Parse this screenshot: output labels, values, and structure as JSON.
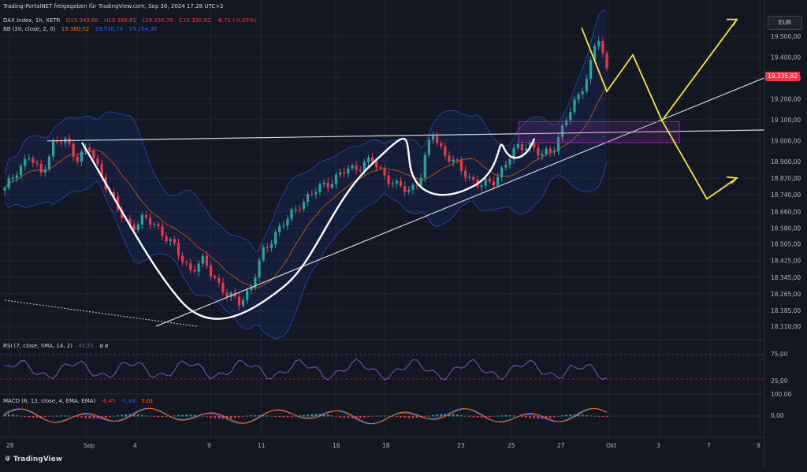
{
  "header": {
    "published": "Trading-PortalNET freigegeben für TradingView.com, Sep 30, 2024 17:28 UTC+2",
    "symbol": "DAX Index, 1h, XETR",
    "open": "O19.343,66",
    "high": "H19.366,61",
    "low": "L19.335,76",
    "close": "C19.335,82",
    "change": "-8,71 (-0,05%)",
    "bb_label": "BB (20, close, 2, 0)",
    "bb_basis": "19.360,52",
    "bb_upper": "19.516,74",
    "bb_lower": "19.204,30"
  },
  "currency": "EUR",
  "last_price": "19.335,82",
  "rsi_label": "RSI (7, close, SMA, 14, 2)",
  "rsi_value": "45,51",
  "rsi_extra": "ø ø",
  "macd_label": "MACD (6, 13, close, 4, EMA, EMA)",
  "macd_hist": "-6,45",
  "macd_line": "-1,43",
  "macd_signal": "5,01",
  "brand": "TradingView",
  "colors": {
    "up": "#26a69a",
    "down": "#f23645",
    "bb": "#2962ff",
    "basis": "#ff6d00",
    "white": "#ffffff",
    "yellow": "#f7e731",
    "rsi": "#7e57c2",
    "zone": "#9c27b0"
  },
  "chart_data": {
    "type": "candlestick",
    "title": "DAX Index, 1h, XETR",
    "ylim": [
      18050,
      19620
    ],
    "y_ticks": [
      "19.500,00",
      "19.400,00",
      "19.300,00",
      "19.200,00",
      "19.100,00",
      "19.000,00",
      "18.900,00",
      "18.820,00",
      "18.740,00",
      "18.660,00",
      "18.580,00",
      "18.505,00",
      "18.425,00",
      "18.345,00",
      "18.265,00",
      "18.185,00",
      "18.110,00"
    ],
    "x_ticks": [
      "28",
      "Sep",
      "4",
      "9",
      "11",
      "16",
      "18",
      "23",
      "25",
      "27",
      "Okt",
      "3",
      "7",
      "9"
    ],
    "rsi_ticks": [
      "75,00",
      "25,00"
    ],
    "macd_ticks": [
      "100,00",
      "0,00"
    ],
    "price_path": [
      [
        0,
        18760
      ],
      [
        0.02,
        18860
      ],
      [
        0.04,
        18920
      ],
      [
        0.06,
        18840
      ],
      [
        0.08,
        18980
      ],
      [
        0.1,
        19000
      ],
      [
        0.12,
        18920
      ],
      [
        0.14,
        18960
      ],
      [
        0.15,
        18900
      ],
      [
        0.17,
        18780
      ],
      [
        0.19,
        18650
      ],
      [
        0.21,
        18590
      ],
      [
        0.23,
        18620
      ],
      [
        0.25,
        18600
      ],
      [
        0.27,
        18530
      ],
      [
        0.29,
        18450
      ],
      [
        0.31,
        18380
      ],
      [
        0.33,
        18420
      ],
      [
        0.35,
        18340
      ],
      [
        0.37,
        18250
      ],
      [
        0.39,
        18230
      ],
      [
        0.41,
        18300
      ],
      [
        0.43,
        18470
      ],
      [
        0.45,
        18560
      ],
      [
        0.47,
        18620
      ],
      [
        0.49,
        18700
      ],
      [
        0.51,
        18740
      ],
      [
        0.53,
        18790
      ],
      [
        0.55,
        18820
      ],
      [
        0.57,
        18860
      ],
      [
        0.59,
        18880
      ],
      [
        0.61,
        18900
      ],
      [
        0.63,
        18840
      ],
      [
        0.65,
        18780
      ],
      [
        0.67,
        18760
      ],
      [
        0.69,
        18820
      ],
      [
        0.71,
        19040
      ],
      [
        0.73,
        18940
      ],
      [
        0.75,
        18880
      ],
      [
        0.77,
        18830
      ],
      [
        0.79,
        18780
      ],
      [
        0.81,
        18800
      ],
      [
        0.83,
        18880
      ],
      [
        0.85,
        18960
      ],
      [
        0.87,
        18990
      ],
      [
        0.89,
        18920
      ],
      [
        0.91,
        18960
      ],
      [
        0.93,
        19080
      ],
      [
        0.95,
        19200
      ],
      [
        0.97,
        19330
      ],
      [
        0.985,
        19500
      ],
      [
        1.0,
        19336
      ]
    ],
    "annotations": [
      "neckline",
      "ascending trendline",
      "resistance zone",
      "scenario arrows"
    ]
  }
}
